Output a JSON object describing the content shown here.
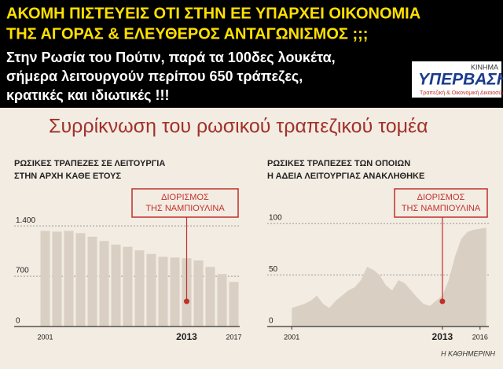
{
  "header": {
    "lines": [
      "ΑΚΟΜΗ ΠΙΣΤΕΥΕΙΣ ΟΤΙ ΣΤΗΝ ΕΕ ΥΠΑΡΧΕΙ ΟΙΚΟΝΟΜΙΑ",
      "ΤΗΣ ΑΓΟΡΑΣ & ΕΛΕΥΘΕΡΟΣ ΑΝΤΑΓΩΝΙΣΜΟΣ ;;;"
    ],
    "sublines": [
      "Στην Ρωσία του Πούτιν, παρά τα 100δες λουκέτα,",
      "σήμερα λειτουργούν περίπου 650 τράπεζες,",
      "κρατικές και ιδιωτικές !!!"
    ]
  },
  "logo": {
    "top": "ΚΙΝΗΜΑ",
    "name": "ΥΠΕΡΒΑΣΗ",
    "tagline": "Τραπεζική & Οικονομική Δικαιοσύνη"
  },
  "title": "Συρρίκνωση του ρωσικού τραπεζικού τομέα",
  "source": "Η ΚΑΘΗΜΕΡΙΝΗ",
  "chart_data": [
    {
      "type": "bar",
      "title": [
        "ΡΩΣΙΚΕΣ ΤΡΑΠΕΖΕΣ ΣΕ ΛΕΙΤΟΥΡΓΙΑ",
        "ΣΤΗΝ ΑΡΧΗ ΚΑΘΕ ΕΤΟΥΣ"
      ],
      "categories": [
        "2001",
        null,
        null,
        null,
        null,
        null,
        null,
        null,
        null,
        null,
        null,
        null,
        "2013",
        null,
        null,
        null,
        "2017"
      ],
      "values": [
        1330,
        1320,
        1330,
        1300,
        1250,
        1190,
        1140,
        1110,
        1060,
        1010,
        970,
        960,
        950,
        920,
        830,
        730,
        620
      ],
      "color": "#d9d0c3",
      "ylim": [
        0,
        1500
      ],
      "yticks": [
        0,
        700,
        {
          "value": 1400,
          "label": "1.400"
        }
      ],
      "grid": true,
      "annotation": [
        "ΔΙΟΡΙΣΜΟΣ",
        "ΤΗΣ ΝΑΜΠΙΟΥΛΙΝΑ"
      ]
    },
    {
      "type": "area",
      "title": [
        "ΡΩΣΙΚΕΣ ΤΡΑΠΕΖΕΣ ΤΩΝ ΟΠΟΙΩΝ",
        "Η ΑΔΕΙΑ ΛΕΙΤΟΥΡΓΙΑΣ ΑΝΑΚΛΗΘΗΚΕ"
      ],
      "x": [
        2001,
        2001.5,
        2002,
        2002.5,
        2003,
        2003.5,
        2004,
        2004.5,
        2005,
        2005.5,
        2006,
        2006.5,
        2007,
        2007.5,
        2008,
        2008.5,
        2009,
        2009.5,
        2010,
        2010.5,
        2011,
        2011.5,
        2012,
        2012.5,
        2013,
        2013.5,
        2014,
        2014.5,
        2015,
        2015.5,
        2016,
        2016.5
      ],
      "values": [
        18,
        20,
        22,
        25,
        30,
        22,
        18,
        25,
        30,
        35,
        38,
        45,
        58,
        55,
        50,
        40,
        35,
        45,
        42,
        35,
        28,
        22,
        20,
        25,
        30,
        45,
        68,
        85,
        92,
        94,
        95,
        96
      ],
      "color": "#d9d0c3",
      "xlim": [
        2000.8,
        2016.7
      ],
      "xticks": [
        2001,
        2013,
        2016
      ],
      "ylim": [
        0,
        110
      ],
      "yticks": [
        0,
        50,
        100
      ],
      "grid": true,
      "annotation": [
        "ΔΙΟΡΙΣΜΟΣ",
        "ΤΗΣ ΝΑΜΠΙΟΥΛΙΝΑ"
      ]
    }
  ]
}
